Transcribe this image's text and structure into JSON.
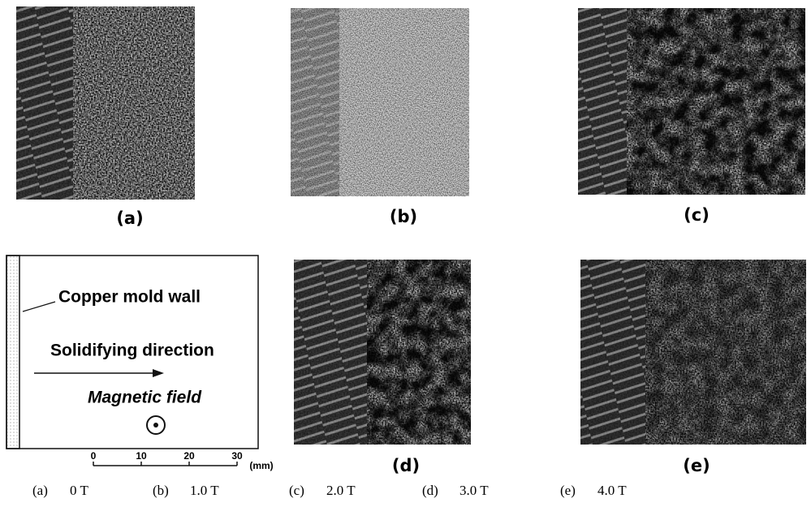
{
  "panels": [
    {
      "label": "(a)"
    },
    {
      "label": "(b)"
    },
    {
      "label": "(c)"
    },
    {
      "label": "(d)"
    },
    {
      "label": "(e)"
    }
  ],
  "legend": {
    "mold_wall": "Copper mold wall",
    "direction": "Solidifying direction",
    "field": "Magnetic field",
    "scale": {
      "ticks": [
        0,
        10,
        20,
        30
      ],
      "unit": "(mm)"
    }
  },
  "captions": [
    {
      "label": "(a)",
      "field": "0 T"
    },
    {
      "label": "(b)",
      "field": "1.0 T"
    },
    {
      "label": "(c)",
      "field": "2.0 T"
    },
    {
      "label": "(d)",
      "field": "3.0 T"
    },
    {
      "label": "(e)",
      "field": "4.0 T"
    }
  ]
}
